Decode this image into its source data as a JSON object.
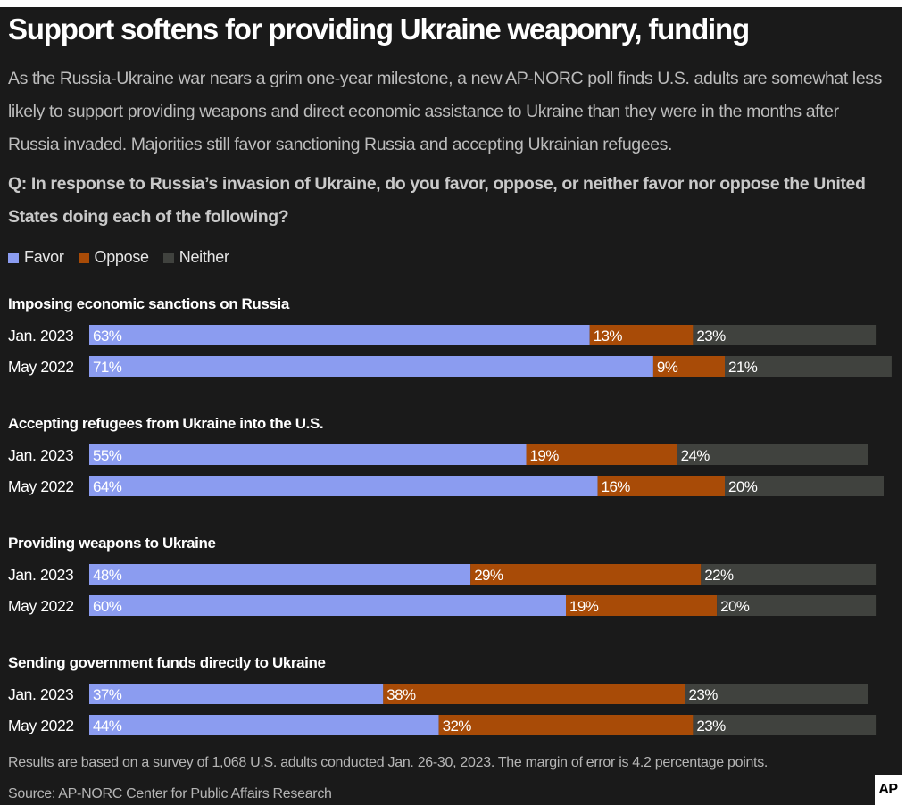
{
  "title": "Support softens for providing Ukraine weaponry, funding",
  "subtitle": "As the Russia-Ukraine war nears a grim one-year milestone, a new AP-NORC poll finds U.S. adults are somewhat less likely to support providing weapons and direct economic assistance to Ukraine than they were in the months after Russia invaded. Majorities still favor sanctioning Russia and accepting Ukrainian refugees.",
  "question": "Q: In response to Russia’s invasion of Ukraine, do you favor, oppose, or neither favor nor oppose the United States doing each of the following?",
  "legend": [
    {
      "label": "Favor",
      "color": "#8b9cf0"
    },
    {
      "label": "Oppose",
      "color": "#a84b07"
    },
    {
      "label": "Neither",
      "color": "#40423e"
    }
  ],
  "chart_data": {
    "type": "bar",
    "orientation": "horizontal",
    "stacked": true,
    "series_names": [
      "Favor",
      "Oppose",
      "Neither"
    ],
    "colors": [
      "#8b9cf0",
      "#a84b07",
      "#40423e"
    ],
    "xlim": [
      0,
      100
    ],
    "unit": "%",
    "groups": [
      {
        "label": "Imposing economic sanctions on Russia",
        "rows": [
          {
            "period": "Jan. 2023",
            "values": [
              63,
              13,
              23
            ]
          },
          {
            "period": "May 2022",
            "values": [
              71,
              9,
              21
            ]
          }
        ]
      },
      {
        "label": "Accepting refugees from Ukraine into the U.S.",
        "rows": [
          {
            "period": "Jan. 2023",
            "values": [
              55,
              19,
              24
            ]
          },
          {
            "period": "May 2022",
            "values": [
              64,
              16,
              20
            ]
          }
        ]
      },
      {
        "label": "Providing weapons to Ukraine",
        "rows": [
          {
            "period": "Jan. 2023",
            "values": [
              48,
              29,
              22
            ]
          },
          {
            "period": "May 2022",
            "values": [
              60,
              19,
              20
            ]
          }
        ]
      },
      {
        "label": "Sending government funds directly to Ukraine",
        "rows": [
          {
            "period": "Jan. 2023",
            "values": [
              37,
              38,
              23
            ]
          },
          {
            "period": "May 2022",
            "values": [
              44,
              32,
              23
            ]
          }
        ]
      }
    ]
  },
  "footnote": "Results are based on a survey of 1,068 U.S. adults conducted Jan. 26-30, 2023. The margin of error is 4.2 percentage points.",
  "source": "Source: AP-NORC Center for Public Affairs Research",
  "logo": {
    "text": "AP"
  }
}
